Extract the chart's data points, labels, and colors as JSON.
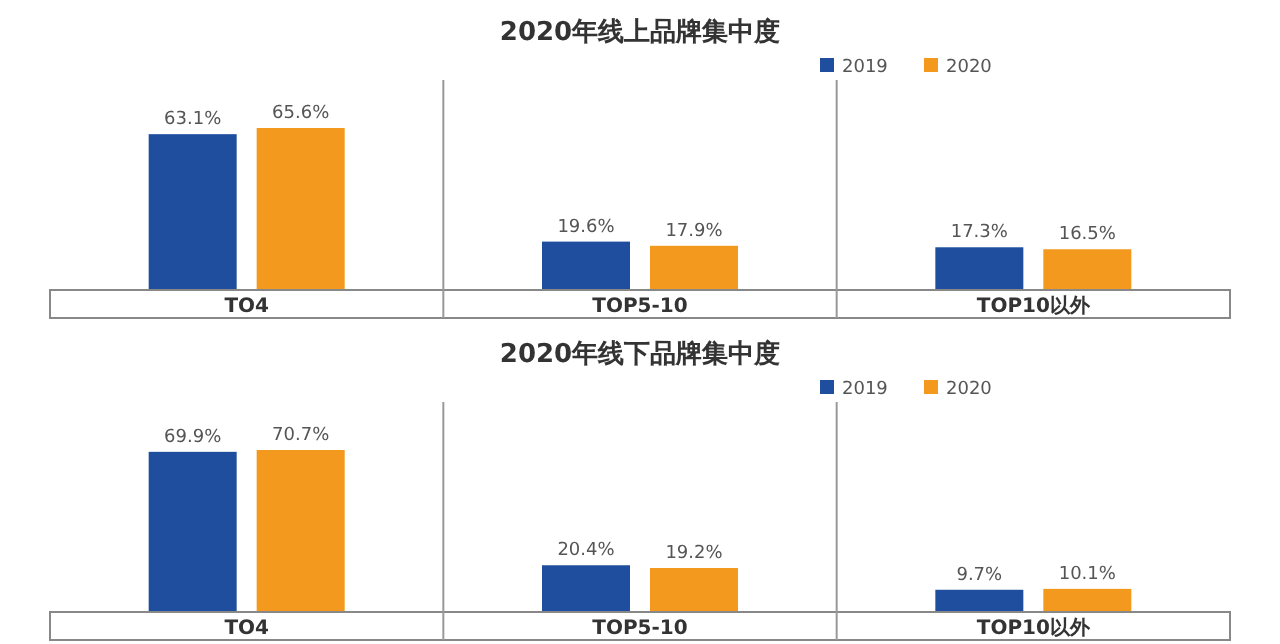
{
  "chart_data": [
    {
      "type": "bar",
      "title": "2020年线上品牌集中度",
      "categories": [
        "TO4",
        "TOP5-10",
        "TOP10以外"
      ],
      "series": [
        {
          "name": "2019",
          "color": "#1f4e9e",
          "values": [
            63.1,
            19.6,
            17.3
          ],
          "value_labels": [
            "63.1%",
            "19.6%",
            "17.3%"
          ]
        },
        {
          "name": "2020",
          "color": "#f39a1e",
          "values": [
            65.6,
            17.9,
            16.5
          ],
          "value_labels": [
            "65.6%",
            "17.9%",
            "16.5%"
          ]
        }
      ],
      "legend": "top right"
    },
    {
      "type": "bar",
      "title": "2020年线下品牌集中度",
      "categories": [
        "TO4",
        "TOP5-10",
        "TOP10以外"
      ],
      "series": [
        {
          "name": "2019",
          "color": "#1f4e9e",
          "values": [
            69.9,
            20.4,
            9.7
          ],
          "value_labels": [
            "69.9%",
            "20.4%",
            "9.7%"
          ]
        },
        {
          "name": "2020",
          "color": "#f39a1e",
          "values": [
            70.7,
            19.2,
            10.1
          ],
          "value_labels": [
            "70.7%",
            "19.2%",
            "10.1%"
          ]
        }
      ],
      "legend": "top right"
    }
  ]
}
